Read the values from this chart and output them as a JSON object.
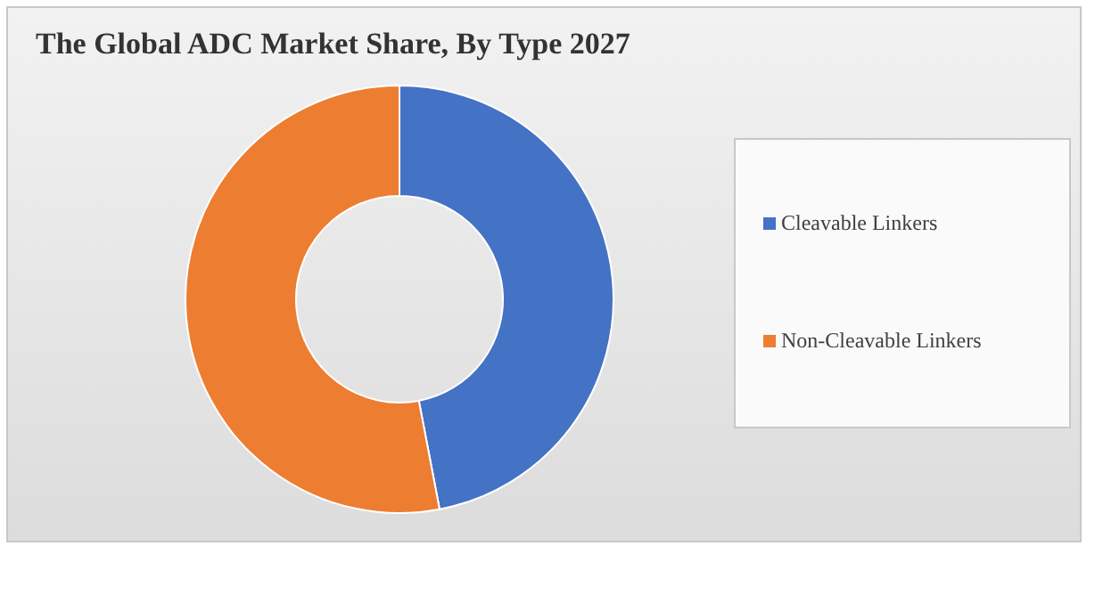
{
  "chart_data": {
    "type": "donut",
    "title": "The Global ADC Market Share, By Type 2027",
    "categories": [
      "Cleavable Linkers",
      "Non-Cleavable Linkers"
    ],
    "values": [
      47,
      53
    ],
    "colors": [
      "#4472c4",
      "#ed7d31"
    ],
    "legend": "right"
  }
}
